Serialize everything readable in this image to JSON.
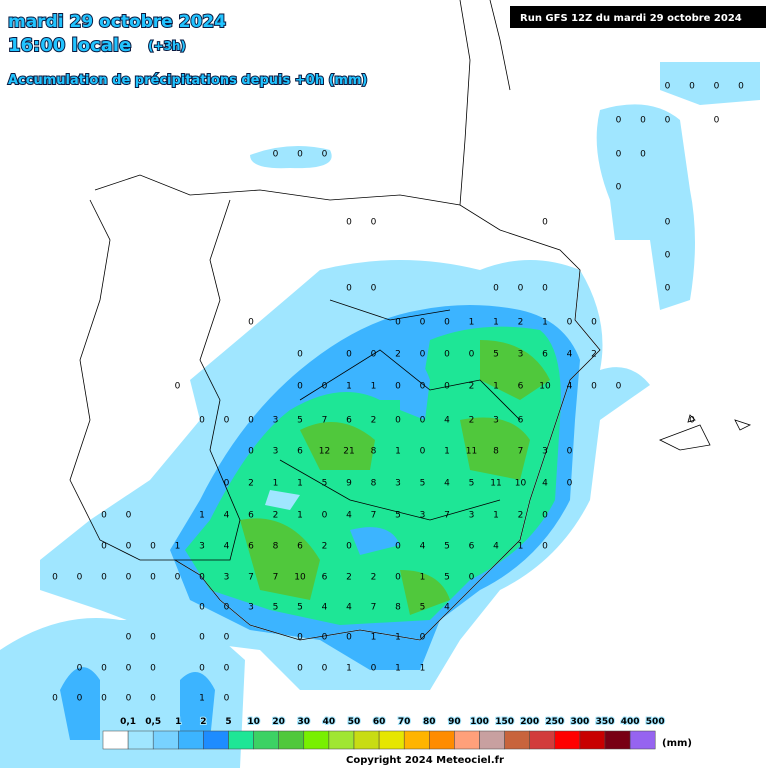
{
  "header": {
    "date": "mardi 29 octobre 2024",
    "time": "16:00 locale",
    "offset": "(+3h)",
    "subtitle": "Accumulation de précipitations depuis +0h (mm)",
    "run": "Run GFS 12Z du mardi 29 octobre 2024"
  },
  "grid": {
    "rows": [
      [
        null,
        null,
        null,
        null,
        null,
        null,
        null,
        null,
        null,
        null,
        null,
        null,
        null,
        null,
        null,
        null,
        null,
        null,
        null,
        null,
        null,
        null,
        null,
        null,
        null,
        null,
        null,
        0,
        0,
        0,
        0
      ],
      [
        null,
        null,
        null,
        null,
        null,
        null,
        null,
        null,
        null,
        null,
        null,
        null,
        null,
        null,
        null,
        null,
        null,
        null,
        null,
        null,
        null,
        null,
        null,
        null,
        null,
        0,
        0,
        0,
        null,
        0,
        null
      ],
      [
        null,
        null,
        null,
        null,
        null,
        null,
        null,
        null,
        null,
        null,
        null,
        0,
        0,
        0,
        null,
        null,
        null,
        null,
        null,
        null,
        null,
        null,
        null,
        null,
        null,
        0,
        0,
        null,
        null,
        null,
        null
      ],
      [
        null,
        null,
        null,
        null,
        null,
        null,
        null,
        null,
        null,
        null,
        null,
        null,
        null,
        null,
        null,
        null,
        null,
        null,
        null,
        null,
        null,
        null,
        null,
        null,
        null,
        0,
        null,
        null,
        null,
        null,
        null
      ],
      [
        null,
        null,
        null,
        null,
        null,
        null,
        null,
        null,
        null,
        null,
        null,
        null,
        null,
        null,
        0,
        0,
        null,
        null,
        null,
        null,
        null,
        null,
        0,
        null,
        null,
        null,
        null,
        0,
        null,
        null,
        null
      ],
      [
        null,
        null,
        null,
        null,
        null,
        null,
        null,
        null,
        null,
        null,
        null,
        null,
        null,
        null,
        null,
        null,
        null,
        null,
        null,
        null,
        null,
        null,
        null,
        null,
        null,
        null,
        null,
        0,
        null,
        null,
        null
      ],
      [
        null,
        null,
        null,
        null,
        null,
        null,
        null,
        null,
        null,
        null,
        null,
        null,
        null,
        null,
        0,
        0,
        null,
        null,
        null,
        null,
        0,
        0,
        0,
        null,
        null,
        null,
        null,
        0,
        null,
        null,
        null
      ],
      [
        null,
        null,
        null,
        null,
        null,
        null,
        null,
        null,
        null,
        null,
        0,
        null,
        null,
        null,
        null,
        null,
        0,
        0,
        0,
        1,
        1,
        2,
        1,
        0,
        0,
        null,
        null,
        null,
        null,
        null,
        null
      ],
      [
        null,
        null,
        null,
        null,
        null,
        null,
        null,
        null,
        null,
        null,
        null,
        null,
        0,
        null,
        0,
        0,
        2,
        0,
        0,
        0,
        5,
        3,
        6,
        4,
        2,
        null,
        null,
        null,
        null,
        null,
        null
      ],
      [
        null,
        null,
        null,
        null,
        null,
        null,
        null,
        0,
        null,
        null,
        null,
        null,
        0,
        0,
        1,
        1,
        0,
        0,
        0,
        2,
        1,
        6,
        10,
        4,
        0,
        0,
        null,
        null,
        null,
        null,
        null
      ],
      [
        null,
        null,
        null,
        null,
        null,
        null,
        null,
        null,
        0,
        0,
        0,
        3,
        5,
        7,
        6,
        2,
        0,
        0,
        4,
        2,
        3,
        6,
        null,
        null,
        null,
        null,
        null,
        null,
        0,
        null,
        null
      ],
      [
        null,
        null,
        null,
        null,
        null,
        null,
        null,
        null,
        null,
        null,
        0,
        3,
        6,
        12,
        21,
        8,
        1,
        0,
        1,
        11,
        8,
        7,
        3,
        0,
        null,
        null,
        null,
        null,
        null,
        null,
        null
      ],
      [
        null,
        null,
        null,
        null,
        null,
        null,
        null,
        null,
        null,
        0,
        2,
        1,
        1,
        5,
        9,
        8,
        3,
        5,
        4,
        5,
        11,
        10,
        4,
        0,
        null,
        null,
        null,
        null,
        null,
        null,
        null
      ],
      [
        null,
        null,
        null,
        null,
        0,
        0,
        null,
        null,
        1,
        4,
        6,
        2,
        1,
        0,
        4,
        7,
        5,
        3,
        7,
        3,
        1,
        2,
        0,
        null,
        null,
        null,
        null,
        null,
        null,
        null,
        null
      ],
      [
        null,
        null,
        null,
        null,
        0,
        0,
        0,
        1,
        3,
        4,
        6,
        8,
        6,
        2,
        0,
        null,
        0,
        4,
        5,
        6,
        4,
        1,
        0,
        null,
        null,
        null,
        null,
        null,
        null,
        null,
        null
      ],
      [
        null,
        null,
        0,
        0,
        0,
        0,
        0,
        0,
        0,
        3,
        7,
        7,
        10,
        6,
        2,
        2,
        0,
        1,
        5,
        0,
        null,
        null,
        null,
        null,
        null,
        null,
        null,
        null,
        null,
        null,
        null
      ],
      [
        null,
        null,
        null,
        null,
        null,
        null,
        null,
        null,
        0,
        0,
        3,
        5,
        5,
        4,
        4,
        7,
        8,
        5,
        4,
        null,
        null,
        null,
        null,
        null,
        null,
        null,
        null,
        null,
        null,
        null,
        null
      ],
      [
        null,
        null,
        null,
        null,
        null,
        0,
        0,
        null,
        0,
        0,
        null,
        null,
        0,
        0,
        0,
        1,
        1,
        0,
        null,
        null,
        null,
        null,
        null,
        null,
        null,
        null,
        null,
        null,
        null,
        null,
        null
      ],
      [
        null,
        null,
        null,
        0,
        0,
        0,
        0,
        null,
        0,
        0,
        null,
        null,
        0,
        0,
        1,
        0,
        1,
        1,
        null,
        null,
        null,
        null,
        null,
        null,
        null,
        null,
        null,
        null,
        null,
        null,
        null
      ],
      [
        null,
        null,
        0,
        0,
        0,
        0,
        0,
        null,
        1,
        0,
        null,
        null,
        null,
        null,
        null,
        null,
        null,
        null,
        null,
        null,
        null,
        null,
        null,
        null,
        null,
        null,
        null,
        null,
        null,
        null,
        null
      ]
    ]
  },
  "legend": {
    "labels": [
      "0,1",
      "0,5",
      "1",
      "2",
      "5",
      "10",
      "20",
      "30",
      "40",
      "50",
      "60",
      "70",
      "80",
      "90",
      "100",
      "150",
      "200",
      "250",
      "300",
      "350",
      "400",
      "500"
    ],
    "colors": [
      "#ffffff",
      "#a0e6ff",
      "#78d2ff",
      "#3cb4ff",
      "#1e8cff",
      "#1ee696",
      "#3cd264",
      "#50c83c",
      "#78f000",
      "#a0e632",
      "#c8dc14",
      "#e6e600",
      "#ffb400",
      "#ff8c00",
      "#ffa07a",
      "#c8a0a0",
      "#c8643c",
      "#d23c3c",
      "#ff0000",
      "#c80000",
      "#780014",
      "#9664f0"
    ],
    "unit": "(mm)"
  },
  "footer": {
    "copyright": "Copyright 2024 Meteociel.fr"
  }
}
